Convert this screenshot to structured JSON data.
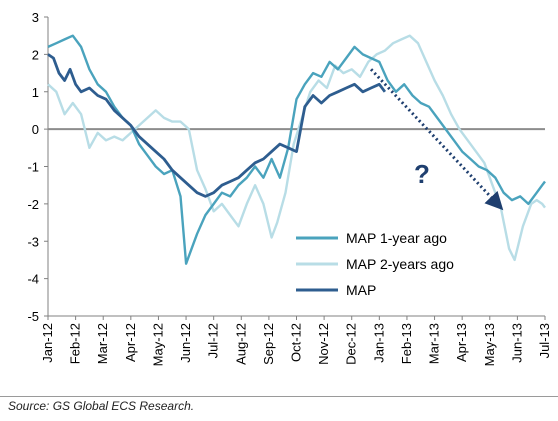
{
  "chart_data": {
    "type": "line",
    "title": "",
    "xlabel": "",
    "ylabel": "",
    "ylim": [
      -5,
      3
    ],
    "yticks": [
      "3",
      "2",
      "1",
      "0",
      "-1",
      "-2",
      "-3",
      "-4",
      "-5"
    ],
    "categories": [
      "Jan-12",
      "Feb-12",
      "Mar-12",
      "Apr-12",
      "May-12",
      "Jun-12",
      "Jul-12",
      "Aug-12",
      "Sep-12",
      "Oct-12",
      "Nov-12",
      "Dec-12",
      "Jan-13",
      "Feb-13",
      "Mar-13",
      "Apr-13",
      "May-13",
      "Jun-13",
      "Jul-13"
    ],
    "grid": false,
    "legend_position": "lower-right",
    "annotation": "?",
    "colors": {
      "map_1y": "#4aa3bd",
      "map_2y": "#b8dde6",
      "map": "#2e5d8f",
      "zero_line": "#8c8c8c",
      "arrow": "#1f3f6f"
    },
    "series": [
      {
        "name": "MAP 1-year ago",
        "points": [
          [
            0,
            2.2
          ],
          [
            0.3,
            2.3
          ],
          [
            0.6,
            2.4
          ],
          [
            0.9,
            2.5
          ],
          [
            1.2,
            2.2
          ],
          [
            1.5,
            1.6
          ],
          [
            1.8,
            1.2
          ],
          [
            2.1,
            1.0
          ],
          [
            2.4,
            0.6
          ],
          [
            2.7,
            0.3
          ],
          [
            3.0,
            0.1
          ],
          [
            3.3,
            -0.4
          ],
          [
            3.6,
            -0.7
          ],
          [
            3.9,
            -1.0
          ],
          [
            4.2,
            -1.2
          ],
          [
            4.5,
            -1.1
          ],
          [
            4.8,
            -1.8
          ],
          [
            5.0,
            -3.6
          ],
          [
            5.2,
            -3.2
          ],
          [
            5.4,
            -2.8
          ],
          [
            5.7,
            -2.3
          ],
          [
            6.0,
            -2.0
          ],
          [
            6.3,
            -1.7
          ],
          [
            6.6,
            -1.8
          ],
          [
            6.9,
            -1.5
          ],
          [
            7.2,
            -1.3
          ],
          [
            7.5,
            -1.0
          ],
          [
            7.8,
            -1.3
          ],
          [
            8.1,
            -0.8
          ],
          [
            8.4,
            -1.3
          ],
          [
            8.7,
            -0.5
          ],
          [
            9.0,
            0.8
          ],
          [
            9.3,
            1.2
          ],
          [
            9.6,
            1.5
          ],
          [
            9.9,
            1.4
          ],
          [
            10.2,
            1.8
          ],
          [
            10.5,
            1.6
          ],
          [
            10.8,
            1.9
          ],
          [
            11.1,
            2.2
          ],
          [
            11.4,
            2.0
          ],
          [
            11.7,
            1.9
          ],
          [
            12.0,
            1.8
          ],
          [
            12.3,
            1.3
          ],
          [
            12.6,
            1.0
          ],
          [
            12.9,
            1.2
          ],
          [
            13.2,
            0.9
          ],
          [
            13.5,
            0.7
          ],
          [
            13.8,
            0.6
          ],
          [
            14.1,
            0.3
          ],
          [
            14.4,
            0.0
          ],
          [
            14.7,
            -0.3
          ],
          [
            15.0,
            -0.6
          ],
          [
            15.3,
            -0.8
          ],
          [
            15.6,
            -1.0
          ],
          [
            15.9,
            -1.1
          ],
          [
            16.2,
            -1.3
          ],
          [
            16.5,
            -1.7
          ],
          [
            16.8,
            -1.9
          ],
          [
            17.1,
            -1.8
          ],
          [
            17.4,
            -2.0
          ],
          [
            17.7,
            -1.7
          ],
          [
            17.9,
            -1.5
          ],
          [
            18.0,
            -1.4
          ]
        ]
      },
      {
        "name": "MAP 2-years ago",
        "points": [
          [
            0,
            1.2
          ],
          [
            0.3,
            1.0
          ],
          [
            0.6,
            0.4
          ],
          [
            0.9,
            0.7
          ],
          [
            1.2,
            0.4
          ],
          [
            1.5,
            -0.5
          ],
          [
            1.8,
            -0.1
          ],
          [
            2.1,
            -0.3
          ],
          [
            2.4,
            -0.2
          ],
          [
            2.7,
            -0.3
          ],
          [
            3.0,
            -0.1
          ],
          [
            3.3,
            0.1
          ],
          [
            3.6,
            0.3
          ],
          [
            3.9,
            0.5
          ],
          [
            4.2,
            0.3
          ],
          [
            4.5,
            0.2
          ],
          [
            4.8,
            0.2
          ],
          [
            5.1,
            0.0
          ],
          [
            5.4,
            -1.1
          ],
          [
            5.7,
            -1.6
          ],
          [
            6.0,
            -2.2
          ],
          [
            6.3,
            -2.0
          ],
          [
            6.6,
            -2.3
          ],
          [
            6.9,
            -2.6
          ],
          [
            7.2,
            -2.0
          ],
          [
            7.5,
            -1.5
          ],
          [
            7.8,
            -2.0
          ],
          [
            8.1,
            -2.9
          ],
          [
            8.3,
            -2.5
          ],
          [
            8.6,
            -1.7
          ],
          [
            8.9,
            -0.4
          ],
          [
            9.2,
            0.3
          ],
          [
            9.5,
            1.0
          ],
          [
            9.8,
            1.3
          ],
          [
            10.1,
            1.1
          ],
          [
            10.4,
            1.7
          ],
          [
            10.7,
            1.5
          ],
          [
            11.0,
            1.6
          ],
          [
            11.3,
            1.4
          ],
          [
            11.6,
            1.8
          ],
          [
            11.9,
            2.0
          ],
          [
            12.2,
            2.1
          ],
          [
            12.5,
            2.3
          ],
          [
            12.8,
            2.4
          ],
          [
            13.1,
            2.5
          ],
          [
            13.4,
            2.3
          ],
          [
            13.7,
            1.8
          ],
          [
            14.0,
            1.3
          ],
          [
            14.3,
            0.9
          ],
          [
            14.6,
            0.4
          ],
          [
            14.9,
            0.0
          ],
          [
            15.2,
            -0.3
          ],
          [
            15.5,
            -0.6
          ],
          [
            15.8,
            -0.9
          ],
          [
            16.1,
            -1.5
          ],
          [
            16.4,
            -2.1
          ],
          [
            16.7,
            -3.2
          ],
          [
            16.9,
            -3.5
          ],
          [
            17.2,
            -2.6
          ],
          [
            17.5,
            -2.0
          ],
          [
            17.7,
            -1.9
          ],
          [
            17.9,
            -2.0
          ],
          [
            18.0,
            -2.1
          ]
        ]
      },
      {
        "name": "MAP",
        "points": [
          [
            0,
            2.0
          ],
          [
            0.2,
            1.9
          ],
          [
            0.4,
            1.5
          ],
          [
            0.6,
            1.3
          ],
          [
            0.8,
            1.6
          ],
          [
            1.0,
            1.2
          ],
          [
            1.2,
            1.0
          ],
          [
            1.5,
            1.1
          ],
          [
            1.8,
            0.9
          ],
          [
            2.1,
            0.8
          ],
          [
            2.4,
            0.5
          ],
          [
            2.7,
            0.3
          ],
          [
            3.0,
            0.1
          ],
          [
            3.3,
            -0.2
          ],
          [
            3.6,
            -0.4
          ],
          [
            3.9,
            -0.6
          ],
          [
            4.2,
            -0.8
          ],
          [
            4.5,
            -1.1
          ],
          [
            4.8,
            -1.3
          ],
          [
            5.1,
            -1.5
          ],
          [
            5.4,
            -1.7
          ],
          [
            5.7,
            -1.8
          ],
          [
            6.0,
            -1.7
          ],
          [
            6.3,
            -1.5
          ],
          [
            6.6,
            -1.4
          ],
          [
            6.9,
            -1.3
          ],
          [
            7.2,
            -1.1
          ],
          [
            7.5,
            -0.9
          ],
          [
            7.8,
            -0.8
          ],
          [
            8.1,
            -0.6
          ],
          [
            8.4,
            -0.4
          ],
          [
            8.7,
            -0.5
          ],
          [
            9.0,
            -0.6
          ],
          [
            9.3,
            0.6
          ],
          [
            9.6,
            0.9
          ],
          [
            9.9,
            0.7
          ],
          [
            10.2,
            0.9
          ],
          [
            10.5,
            1.0
          ],
          [
            10.8,
            1.1
          ],
          [
            11.1,
            1.2
          ],
          [
            11.4,
            1.0
          ],
          [
            11.7,
            1.1
          ],
          [
            12.0,
            1.2
          ],
          [
            12.2,
            1.0
          ]
        ]
      }
    ],
    "forecast_arrow": {
      "from": [
        11.7,
        1.6
      ],
      "to": [
        16.4,
        -2.1
      ]
    }
  },
  "source": "Source: GS Global ECS Research."
}
